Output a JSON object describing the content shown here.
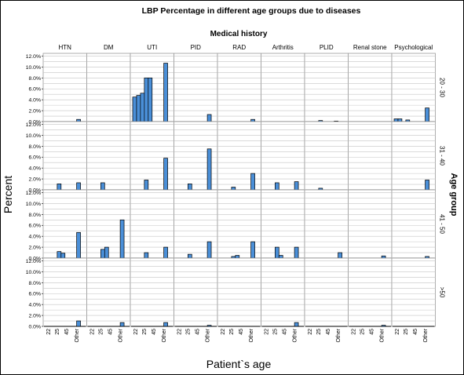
{
  "chart_data": {
    "type": "bar",
    "title": "LBP Percentage in different age groups due to diseases",
    "column_group_label": "Medical history",
    "row_group_label": "Age group",
    "xlabel": "Patient`s age",
    "ylabel": "Percent",
    "columns": [
      "HTN",
      "DM",
      "UTI",
      "PID",
      "RAD",
      "Arthritis",
      "PLID",
      "Renal stone",
      "Psychological"
    ],
    "rows": [
      "20 - 30",
      "31 - 40",
      "41 - 50",
      ">50"
    ],
    "x_ticks": [
      "22",
      "25",
      "45",
      "Other"
    ],
    "y_ticks": [
      "0.0%",
      "2.0%",
      "4.0%",
      "6.0%",
      "8.0%",
      "10.0%",
      "12.0%"
    ],
    "ylim": [
      0,
      12.5
    ],
    "grid": true,
    "bar_color": "#4a8fd8",
    "outline_color": "#000000",
    "legend": "none",
    "bins_per_panel": 10,
    "panels": [
      [
        [
          0,
          0,
          0,
          0,
          0,
          0,
          0,
          0,
          0.4,
          0
        ],
        [
          0,
          0,
          0,
          0,
          0,
          0,
          0,
          0,
          0,
          0
        ],
        [
          4.5,
          4.8,
          5.2,
          8,
          8,
          0,
          0,
          0,
          10.7,
          0
        ],
        [
          0,
          0,
          0,
          0,
          0,
          0,
          0,
          0,
          1.3,
          0
        ],
        [
          0,
          0,
          0,
          0,
          0,
          0,
          0,
          0,
          0.4,
          0
        ],
        [
          0,
          0,
          0,
          0,
          0,
          0,
          0,
          0,
          0,
          0
        ],
        [
          0,
          0,
          0,
          0.2,
          0,
          0,
          0,
          0.1,
          0,
          0
        ],
        [
          0,
          0,
          0,
          0,
          0,
          0,
          0,
          0,
          0,
          0
        ],
        [
          0.5,
          0.5,
          0,
          0.3,
          0,
          0,
          0,
          0,
          2.5,
          0
        ]
      ],
      [
        [
          0,
          0,
          0,
          1.1,
          0,
          0,
          0,
          0,
          1.3,
          0
        ],
        [
          0,
          0,
          0,
          1.3,
          0,
          0,
          0,
          0,
          0,
          0
        ],
        [
          0,
          0,
          0,
          1.8,
          0,
          0,
          0,
          0,
          5.8,
          0
        ],
        [
          0,
          0,
          0,
          1.1,
          0,
          0,
          0,
          0,
          7.5,
          0
        ],
        [
          0,
          0,
          0,
          0.5,
          0,
          0,
          0,
          0,
          3,
          0
        ],
        [
          0,
          0,
          0,
          1.3,
          0,
          0,
          0,
          0,
          1.5,
          0
        ],
        [
          0,
          0,
          0,
          0.3,
          0,
          0,
          0,
          0,
          0,
          0
        ],
        [
          0,
          0,
          0,
          0,
          0,
          0,
          0,
          0,
          0,
          0
        ],
        [
          0,
          0,
          0,
          0,
          0,
          0,
          0,
          0,
          1.8,
          0
        ]
      ],
      [
        [
          0,
          0,
          0,
          1.2,
          0.9,
          0,
          0,
          0,
          4.7,
          0
        ],
        [
          0,
          0,
          0,
          1.6,
          2,
          0,
          0,
          0,
          7,
          0
        ],
        [
          0,
          0,
          0,
          1,
          0,
          0,
          0,
          0,
          2,
          0
        ],
        [
          0,
          0,
          0,
          0.7,
          0,
          0,
          0,
          0,
          3,
          0
        ],
        [
          0,
          0,
          0,
          0.3,
          0.5,
          0,
          0,
          0,
          3,
          0
        ],
        [
          0,
          0,
          0,
          2,
          0.5,
          0,
          0,
          0,
          2,
          0
        ],
        [
          0,
          0,
          0,
          0,
          0,
          0,
          0,
          0,
          1,
          0
        ],
        [
          0,
          0,
          0,
          0,
          0,
          0,
          0,
          0,
          0.4,
          0
        ],
        [
          0,
          0,
          0,
          0,
          0,
          0,
          0,
          0,
          0.3,
          0
        ]
      ],
      [
        [
          0,
          0,
          0,
          0,
          0,
          0,
          0,
          0,
          1,
          0
        ],
        [
          0,
          0,
          0,
          0,
          0,
          0,
          0,
          0,
          0.7,
          0
        ],
        [
          0,
          0,
          0,
          0,
          0,
          0,
          0,
          0,
          0.7,
          0
        ],
        [
          0,
          0,
          0,
          0,
          0,
          0,
          0,
          0,
          0.2,
          0
        ],
        [
          0,
          0,
          0,
          0,
          0,
          0,
          0,
          0,
          0,
          0
        ],
        [
          0,
          0,
          0,
          0,
          0,
          0,
          0,
          0,
          0.7,
          0
        ],
        [
          0,
          0,
          0,
          0,
          0,
          0,
          0,
          0,
          0,
          0
        ],
        [
          0,
          0,
          0,
          0,
          0,
          0,
          0,
          0,
          0.2,
          0
        ],
        [
          0,
          0,
          0,
          0,
          0,
          0,
          0,
          0,
          0,
          0
        ]
      ]
    ]
  }
}
